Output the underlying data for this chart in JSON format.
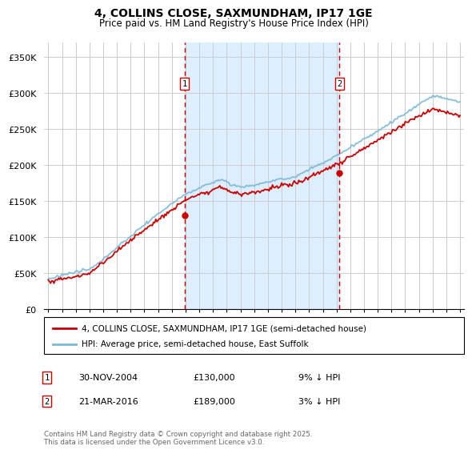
{
  "title": "4, COLLINS CLOSE, SAXMUNDHAM, IP17 1GE",
  "subtitle": "Price paid vs. HM Land Registry's House Price Index (HPI)",
  "ylabel_ticks": [
    "£0",
    "£50K",
    "£100K",
    "£150K",
    "£200K",
    "£250K",
    "£300K",
    "£350K"
  ],
  "ytick_values": [
    0,
    50000,
    100000,
    150000,
    200000,
    250000,
    300000,
    350000
  ],
  "ylim": [
    0,
    370000
  ],
  "hpi_color": "#7ab8d9",
  "price_color": "#cc0000",
  "vline_color": "#cc0000",
  "bg_shade_color": "#ddeeff",
  "legend_line1": "4, COLLINS CLOSE, SAXMUNDHAM, IP17 1GE (semi-detached house)",
  "legend_line2": "HPI: Average price, semi-detached house, East Suffolk",
  "footer": "Contains HM Land Registry data © Crown copyright and database right 2025.\nThis data is licensed under the Open Government Licence v3.0.",
  "x_start_year": 1995,
  "x_end_year": 2025,
  "marker1_year": 2004.917,
  "marker2_year": 2016.208,
  "marker1_price": 130000,
  "marker2_price": 189000
}
